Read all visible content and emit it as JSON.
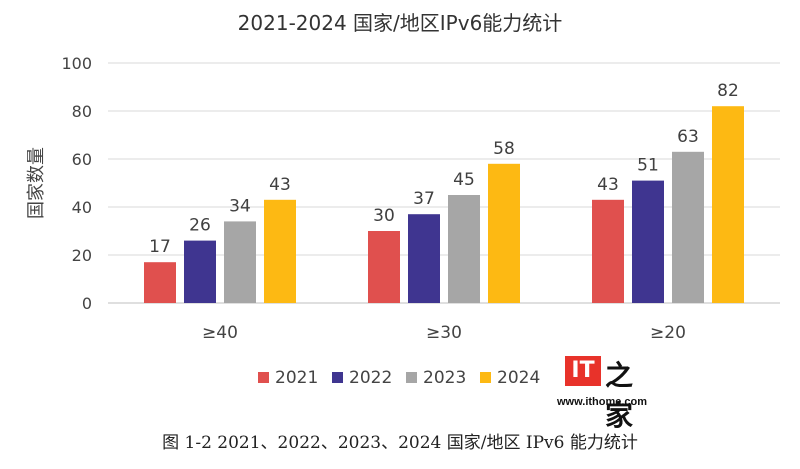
{
  "chart_data": {
    "type": "bar",
    "title": "2021-2024 国家/地区IPv6能力统计",
    "ylabel": "国家数量",
    "xlabel": "",
    "categories": [
      "≥40",
      "≥30",
      "≥20"
    ],
    "ylim": [
      0,
      100
    ],
    "yticks": [
      0,
      20,
      40,
      60,
      80,
      100
    ],
    "grid": true,
    "legend_position": "bottom",
    "series": [
      {
        "name": "2021",
        "color": "#e0504e",
        "values": [
          17,
          30,
          43
        ]
      },
      {
        "name": "2022",
        "color": "#3f3590",
        "values": [
          26,
          37,
          51
        ]
      },
      {
        "name": "2023",
        "color": "#a6a6a6",
        "values": [
          34,
          45,
          63
        ]
      },
      {
        "name": "2024",
        "color": "#fdb913",
        "values": [
          43,
          58,
          82
        ]
      }
    ]
  },
  "watermark": {
    "mark": "IT",
    "glyph": "之家",
    "url": "www.ithome.com"
  },
  "caption": "图 1-2 2021、2022、2023、2024 国家/地区 IPv6 能力统计"
}
